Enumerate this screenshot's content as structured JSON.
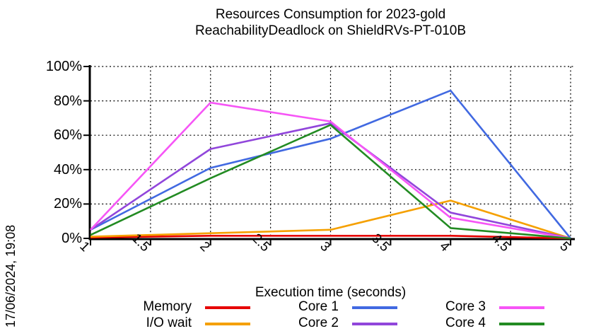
{
  "title": {
    "line1": "Resources Consumption for 2023-gold",
    "line2": "ReachabilityDeadlock on ShieldRVs-PT-010B"
  },
  "timestamp": "17/06/2024, 19:08",
  "chart_data": {
    "type": "line",
    "title": "Resources Consumption for 2023-gold ReachabilityDeadlock on ShieldRVs-PT-010B",
    "xlabel": "Execution time (seconds)",
    "ylabel": "",
    "x": [
      1,
      2,
      3,
      4,
      5
    ],
    "series": [
      {
        "name": "Memory",
        "color": "#e60000",
        "values": [
          0.5,
          1.5,
          1.5,
          1.5,
          0
        ]
      },
      {
        "name": "I/O wait",
        "color": "#f5a000",
        "values": [
          1,
          3,
          5,
          22,
          0
        ]
      },
      {
        "name": "Core 1",
        "color": "#4169e1",
        "values": [
          5,
          41,
          58,
          86,
          0
        ]
      },
      {
        "name": "Core 2",
        "color": "#9146db",
        "values": [
          5,
          52,
          67,
          15,
          0
        ]
      },
      {
        "name": "Core 3",
        "color": "#f655f6",
        "values": [
          5,
          79,
          68,
          12,
          0
        ]
      },
      {
        "name": "Core 4",
        "color": "#228b22",
        "values": [
          2,
          35,
          66,
          6,
          0
        ]
      }
    ],
    "xlim": [
      1,
      5
    ],
    "ylim": [
      0,
      100
    ],
    "x_ticks": [
      "1",
      "1.5",
      "2",
      "2.5",
      "3",
      "3.5",
      "4",
      "4.5",
      "5"
    ],
    "x_tick_values": [
      1,
      1.5,
      2,
      2.5,
      3,
      3.5,
      4,
      4.5,
      5
    ],
    "y_ticks": [
      "0%",
      "20%",
      "40%",
      "60%",
      "80%",
      "100%"
    ],
    "y_tick_values": [
      0,
      20,
      40,
      60,
      80,
      100
    ],
    "grid": true,
    "grid_color": "#000000",
    "axis_color": "#000000",
    "legend_position": "bottom"
  }
}
